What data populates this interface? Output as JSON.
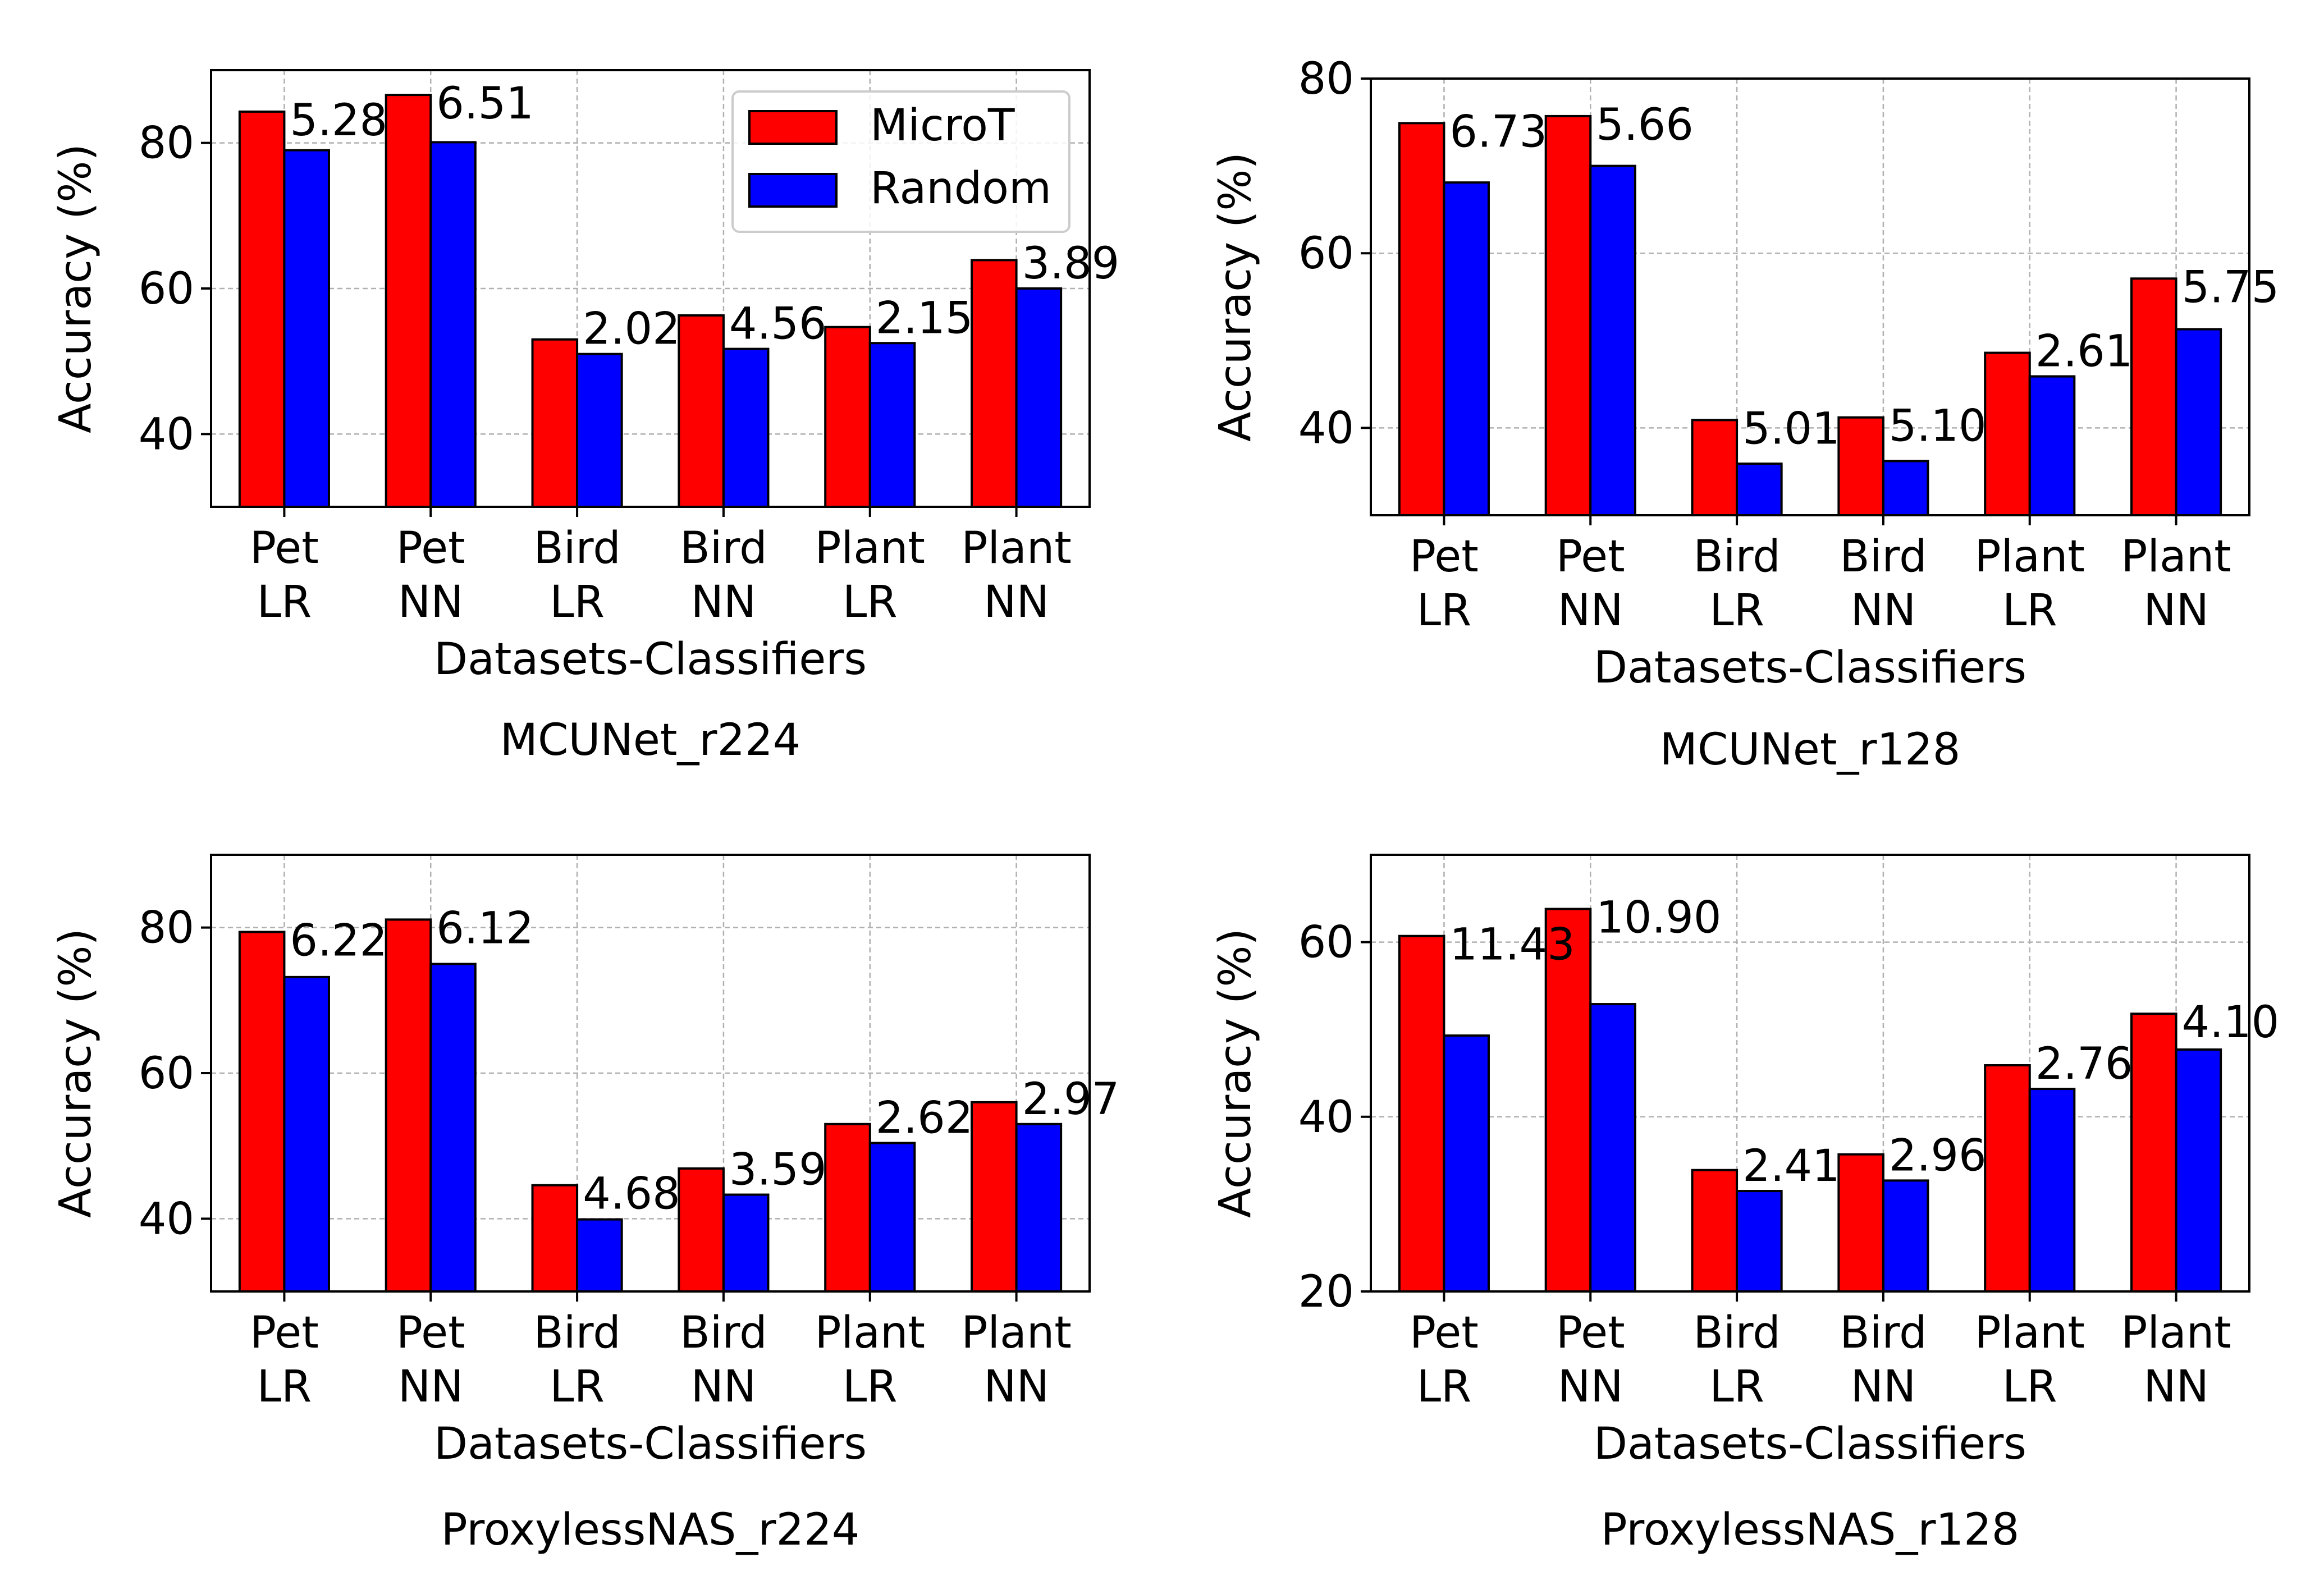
{
  "colors": {
    "microt": "#ff0000",
    "random": "#0000ff",
    "grid": "#b0b0b0",
    "axis": "#000000"
  },
  "legend": {
    "placement": "upper right of first panel",
    "items": [
      "MicroT",
      "Random"
    ]
  },
  "chart_data": [
    {
      "type": "bar",
      "caption": "MCUNet_r224",
      "xlabel": "Datasets-Classifiers",
      "ylabel": "Accuracy (%)",
      "ylim": [
        30,
        90
      ],
      "yticks": [
        40,
        60,
        80
      ],
      "categories": [
        [
          "Pet",
          "LR"
        ],
        [
          "Pet",
          "NN"
        ],
        [
          "Bird",
          "LR"
        ],
        [
          "Bird",
          "NN"
        ],
        [
          "Plant",
          "LR"
        ],
        [
          "Plant",
          "NN"
        ]
      ],
      "series": [
        {
          "name": "MicroT",
          "values": [
            84.3,
            86.6,
            53.0,
            56.3,
            54.7,
            63.9
          ]
        },
        {
          "name": "Random",
          "values": [
            79.0,
            80.1,
            51.0,
            51.7,
            52.5,
            60.0
          ]
        }
      ],
      "annotations": [
        "5.28",
        "6.51",
        "2.02",
        "4.56",
        "2.15",
        "3.89"
      ],
      "grid": true,
      "show_legend": true
    },
    {
      "type": "bar",
      "caption": "MCUNet_r128",
      "xlabel": "Datasets-Classifiers",
      "ylabel": "Accuracy (%)",
      "ylim": [
        30,
        80
      ],
      "yticks": [
        40,
        60,
        80
      ],
      "categories": [
        [
          "Pet",
          "LR"
        ],
        [
          "Pet",
          "NN"
        ],
        [
          "Bird",
          "LR"
        ],
        [
          "Bird",
          "NN"
        ],
        [
          "Plant",
          "LR"
        ],
        [
          "Plant",
          "NN"
        ]
      ],
      "series": [
        {
          "name": "MicroT",
          "values": [
            74.9,
            75.7,
            40.9,
            41.2,
            48.6,
            57.1
          ]
        },
        {
          "name": "Random",
          "values": [
            68.1,
            70.0,
            35.9,
            36.2,
            45.9,
            51.3
          ]
        }
      ],
      "annotations": [
        "6.73",
        "5.66",
        "5.01",
        "5.10",
        "2.61",
        "5.75"
      ],
      "grid": true,
      "show_legend": false
    },
    {
      "type": "bar",
      "caption": "ProxylessNAS_r224",
      "xlabel": "Datasets-Classifiers",
      "ylabel": "Accuracy (%)",
      "ylim": [
        30,
        90
      ],
      "yticks": [
        40,
        60,
        80
      ],
      "categories": [
        [
          "Pet",
          "LR"
        ],
        [
          "Pet",
          "NN"
        ],
        [
          "Bird",
          "LR"
        ],
        [
          "Bird",
          "NN"
        ],
        [
          "Plant",
          "LR"
        ],
        [
          "Plant",
          "NN"
        ]
      ],
      "series": [
        {
          "name": "MicroT",
          "values": [
            79.4,
            81.1,
            44.6,
            46.9,
            53.0,
            56.0
          ]
        },
        {
          "name": "Random",
          "values": [
            73.2,
            75.0,
            39.9,
            43.3,
            50.4,
            53.0
          ]
        }
      ],
      "annotations": [
        "6.22",
        "6.12",
        "4.68",
        "3.59",
        "2.62",
        "2.97"
      ],
      "grid": true,
      "show_legend": false
    },
    {
      "type": "bar",
      "caption": "ProxylessNAS_r128",
      "xlabel": "Datasets-Classifiers",
      "ylabel": "Accuracy (%)",
      "ylim": [
        20,
        70
      ],
      "yticks": [
        20,
        40,
        60
      ],
      "categories": [
        [
          "Pet",
          "LR"
        ],
        [
          "Pet",
          "NN"
        ],
        [
          "Bird",
          "LR"
        ],
        [
          "Bird",
          "NN"
        ],
        [
          "Plant",
          "LR"
        ],
        [
          "Plant",
          "NN"
        ]
      ],
      "series": [
        {
          "name": "MicroT",
          "values": [
            60.7,
            63.8,
            33.9,
            35.7,
            45.9,
            51.8
          ]
        },
        {
          "name": "Random",
          "values": [
            49.3,
            52.9,
            31.5,
            32.7,
            43.2,
            47.7
          ]
        }
      ],
      "annotations": [
        "11.43",
        "10.90",
        "2.41",
        "2.96",
        "2.76",
        "4.10"
      ],
      "grid": true,
      "show_legend": false
    }
  ]
}
